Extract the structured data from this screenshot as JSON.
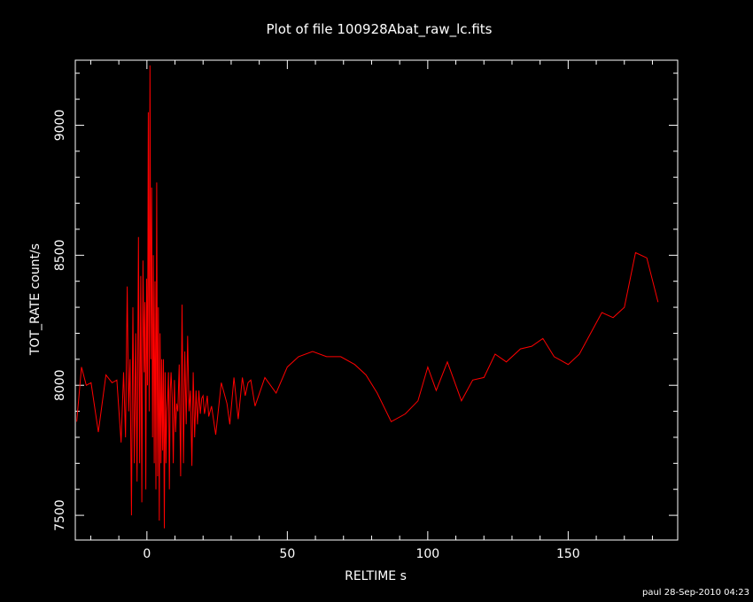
{
  "title": "Plot of file 100928Abat_raw_lc.fits",
  "footer": "paul 28-Sep-2010 04:23",
  "chart_data": {
    "type": "line",
    "title": "Plot of file 100928Abat_raw_lc.fits",
    "xlabel": "RELTIME  s",
    "ylabel": "TOT_RATE  count/s",
    "xlim": [
      -25.5,
      189
    ],
    "ylim": [
      7405,
      9250
    ],
    "x_ticks": [
      0,
      50,
      100,
      150
    ],
    "y_ticks": [
      7500,
      8000,
      8500,
      9000
    ],
    "x_tick_labels": [
      "0",
      "50",
      "100",
      "150"
    ],
    "y_tick_labels": [
      "7500",
      "8000",
      "8500",
      "9000"
    ],
    "line_color": "#ff0000",
    "background": "#000000",
    "grid": false,
    "series": [
      {
        "x": [
          -25,
          -23.3,
          -21.6,
          -19.9,
          -17.3,
          -14.6,
          -12.4,
          -10.7,
          -9.2,
          -8.3,
          -7.6,
          -7.0,
          -6.5,
          -6.0,
          -5.5,
          -5.0,
          -4.5,
          -4.0,
          -3.5,
          -3.0,
          -2.6,
          -2.2,
          -1.8,
          -1.4,
          -1.0,
          -0.7,
          -0.4,
          -0.1,
          0.2,
          0.5,
          0.8,
          1.1,
          1.4,
          1.7,
          2.0,
          2.3,
          2.6,
          2.9,
          3.2,
          3.5,
          3.8,
          4.1,
          4.4,
          4.7,
          5.0,
          5.3,
          5.6,
          5.9,
          6.2,
          6.5,
          6.8,
          7.1,
          7.4,
          7.7,
          8.0,
          8.3,
          8.6,
          9.0,
          9.4,
          9.8,
          10.2,
          10.6,
          11.0,
          11.5,
          12.0,
          12.5,
          13.0,
          13.5,
          14.0,
          14.5,
          15.0,
          15.5,
          16.0,
          16.5,
          17.0,
          17.5,
          18.0,
          18.5,
          19.0,
          19.5,
          20.0,
          20.5,
          21.0,
          21.5,
          22.0,
          23.0,
          24.5,
          26.5,
          28.5,
          29.5,
          31.0,
          32.5,
          34.0,
          35.0,
          36.0,
          37.0,
          38.5,
          42.0,
          46.0,
          50.0,
          54.0,
          59.0,
          64.0,
          69.0,
          74.0,
          78.0,
          82.0,
          87.0,
          92.0,
          96.5,
          100.0,
          103.0,
          107.0,
          112.0,
          116.0,
          120.0,
          124.0,
          128.0,
          133.0,
          137.0,
          141.0,
          145.0,
          150.0,
          154.0,
          158.0,
          162.0,
          166.0,
          170.0,
          174.0,
          178.0,
          182.0
        ],
        "y": [
          7860,
          8070,
          8000,
          8010,
          7820,
          8040,
          8010,
          8020,
          7780,
          8050,
          7800,
          8380,
          7900,
          8100,
          7500,
          8300,
          7700,
          8200,
          7630,
          8570,
          7700,
          8420,
          7550,
          8480,
          8050,
          8320,
          7600,
          8410,
          8000,
          9050,
          7900,
          9230,
          8100,
          8760,
          7800,
          8500,
          7700,
          8400,
          7600,
          8780,
          7650,
          8300,
          7480,
          8200,
          7700,
          8100,
          7750,
          8100,
          7450,
          8050,
          7700,
          7900,
          7950,
          8050,
          7600,
          7980,
          8050,
          7950,
          7700,
          8020,
          7820,
          7930,
          7900,
          8080,
          7650,
          8310,
          7700,
          8130,
          7850,
          8190,
          7900,
          7980,
          7690,
          8050,
          7800,
          7980,
          7850,
          7980,
          7890,
          7950,
          7960,
          7890,
          7920,
          7960,
          7880,
          7920,
          7810,
          8010,
          7930,
          7850,
          8030,
          7870,
          8030,
          7960,
          8010,
          8020,
          7920,
          8030,
          7970,
          8070,
          8110,
          8130,
          8110,
          8110,
          8080,
          8040,
          7970,
          7860,
          7890,
          7940,
          8070,
          7980,
          8090,
          7940,
          8020,
          8030,
          8120,
          8090,
          8140,
          8150,
          8180,
          8110,
          8080,
          8120,
          8200,
          8280,
          8260,
          8300,
          8510,
          8490,
          8320
        ]
      }
    ]
  }
}
